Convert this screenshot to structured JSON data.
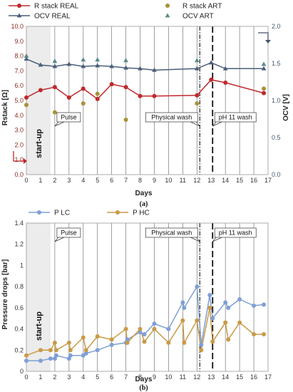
{
  "chart_data": [
    {
      "type": "line",
      "panel_label": "(a)",
      "xlabel": "Days",
      "ylabel": "Rstack [Ω]",
      "ylabel2": "OCV [V]",
      "xlim": [
        0,
        17
      ],
      "ylim": [
        0,
        10
      ],
      "ylim2": [
        0,
        2
      ],
      "x_ticks": [
        "0",
        "1",
        "2",
        "3",
        "4",
        "5",
        "6",
        "7",
        "8",
        "9",
        "10",
        "11",
        "12",
        "13",
        "14",
        "15",
        "16",
        "17"
      ],
      "y_ticks": [
        "0.0",
        "1.0",
        "2.0",
        "3.0",
        "4.0",
        "5.0",
        "6.0",
        "7.0",
        "8.0",
        "9.0",
        "10.0"
      ],
      "y2_ticks": [
        "0.0",
        "0.5",
        "1.0",
        "1.5",
        "2.0"
      ],
      "startup_label": "start-up",
      "legend_placement": "top",
      "annotations": [
        {
          "text": "Pulse",
          "x": 2
        },
        {
          "text": "Physical wash",
          "x": 12.2
        },
        {
          "text": "pH 11 wash",
          "x": 13.1
        }
      ],
      "series": [
        {
          "name": "R stack REAL",
          "color": "#c0282d",
          "axis": "left",
          "kind": "line-marker",
          "x": [
            0,
            1,
            2,
            3,
            4,
            5,
            6,
            7,
            8,
            9,
            12,
            13,
            14,
            16.7
          ],
          "y": [
            5.2,
            5.7,
            5.9,
            5.2,
            5.8,
            5.1,
            6.1,
            5.9,
            5.3,
            5.3,
            5.35,
            6.4,
            6.2,
            5.5
          ]
        },
        {
          "name": "R stack ART",
          "color": "#a8923a",
          "axis": "left",
          "kind": "marker",
          "x": [
            0,
            2,
            4,
            5,
            7,
            12,
            16.7
          ],
          "y": [
            4.7,
            4.2,
            4.8,
            5.45,
            3.7,
            4.8,
            5.8
          ]
        },
        {
          "name": "OCV REAL",
          "color": "#4a5e7a",
          "axis": "right",
          "kind": "line-marker",
          "x": [
            0,
            1,
            2,
            3,
            4,
            5,
            6,
            7,
            8,
            9,
            12,
            13,
            14,
            16.7
          ],
          "y": [
            1.56,
            1.48,
            1.46,
            1.49,
            1.46,
            1.47,
            1.46,
            1.44,
            1.43,
            1.41,
            1.43,
            1.51,
            1.43,
            1.43
          ]
        },
        {
          "name": "OCV ART",
          "color": "#5b8a8a",
          "axis": "right",
          "kind": "marker",
          "x": [
            0,
            2,
            4,
            5,
            7,
            12,
            16.7
          ],
          "y": [
            1.6,
            1.53,
            1.55,
            1.55,
            1.54,
            1.54,
            1.49
          ]
        }
      ]
    },
    {
      "type": "line",
      "panel_label": "(b)",
      "xlabel": "Days",
      "ylabel": "Pressure drops [bar]",
      "xlim": [
        0,
        17
      ],
      "ylim": [
        0,
        1.4
      ],
      "x_ticks": [
        "0",
        "1",
        "2",
        "3",
        "4",
        "5",
        "6",
        "7",
        "8",
        "9",
        "10",
        "11",
        "12",
        "13",
        "14",
        "15",
        "16",
        "17"
      ],
      "y_ticks": [
        "0",
        "0.2",
        "0.4",
        "0.6",
        "0.8",
        "1",
        "1.2",
        "1.4"
      ],
      "startup_label": "start-up",
      "legend_placement": "top",
      "annotations": [
        {
          "text": "Pulse",
          "x": 2
        },
        {
          "text": "Physical wash",
          "x": 12.2
        },
        {
          "text": "pH 11 wash",
          "x": 13.1
        }
      ],
      "series": [
        {
          "name": "P LC",
          "color": "#7f9fd6",
          "x": [
            0,
            1,
            1.7,
            2,
            2.1,
            3,
            3.1,
            4,
            4.2,
            5,
            6,
            7,
            7.1,
            8,
            8.3,
            9,
            10,
            11,
            11.1,
            12,
            12.3,
            12.9,
            13.1,
            14,
            14.2,
            15,
            16,
            16.7
          ],
          "y": [
            0.1,
            0.1,
            0.12,
            0.12,
            0.15,
            0.12,
            0.15,
            0.15,
            0.17,
            0.2,
            0.25,
            0.27,
            0.3,
            0.37,
            0.35,
            0.45,
            0.4,
            0.65,
            0.6,
            0.8,
            0.25,
            0.72,
            0.5,
            0.65,
            0.6,
            0.68,
            0.62,
            0.63
          ]
        },
        {
          "name": "P HC",
          "color": "#c99a46",
          "x": [
            0,
            1,
            1.7,
            2,
            2.1,
            3,
            3.1,
            4,
            4.2,
            5,
            6,
            7,
            7.1,
            8,
            8.3,
            9,
            10,
            11,
            11.1,
            12,
            12.3,
            12.9,
            13.1,
            14,
            14.2,
            15,
            16,
            16.7
          ],
          "y": [
            0.15,
            0.2,
            0.2,
            0.27,
            0.2,
            0.27,
            0.2,
            0.32,
            0.2,
            0.33,
            0.3,
            0.4,
            0.27,
            0.4,
            0.28,
            0.4,
            0.27,
            0.48,
            0.27,
            0.48,
            0.2,
            0.6,
            0.28,
            0.46,
            0.3,
            0.46,
            0.35,
            0.35
          ]
        }
      ]
    }
  ]
}
